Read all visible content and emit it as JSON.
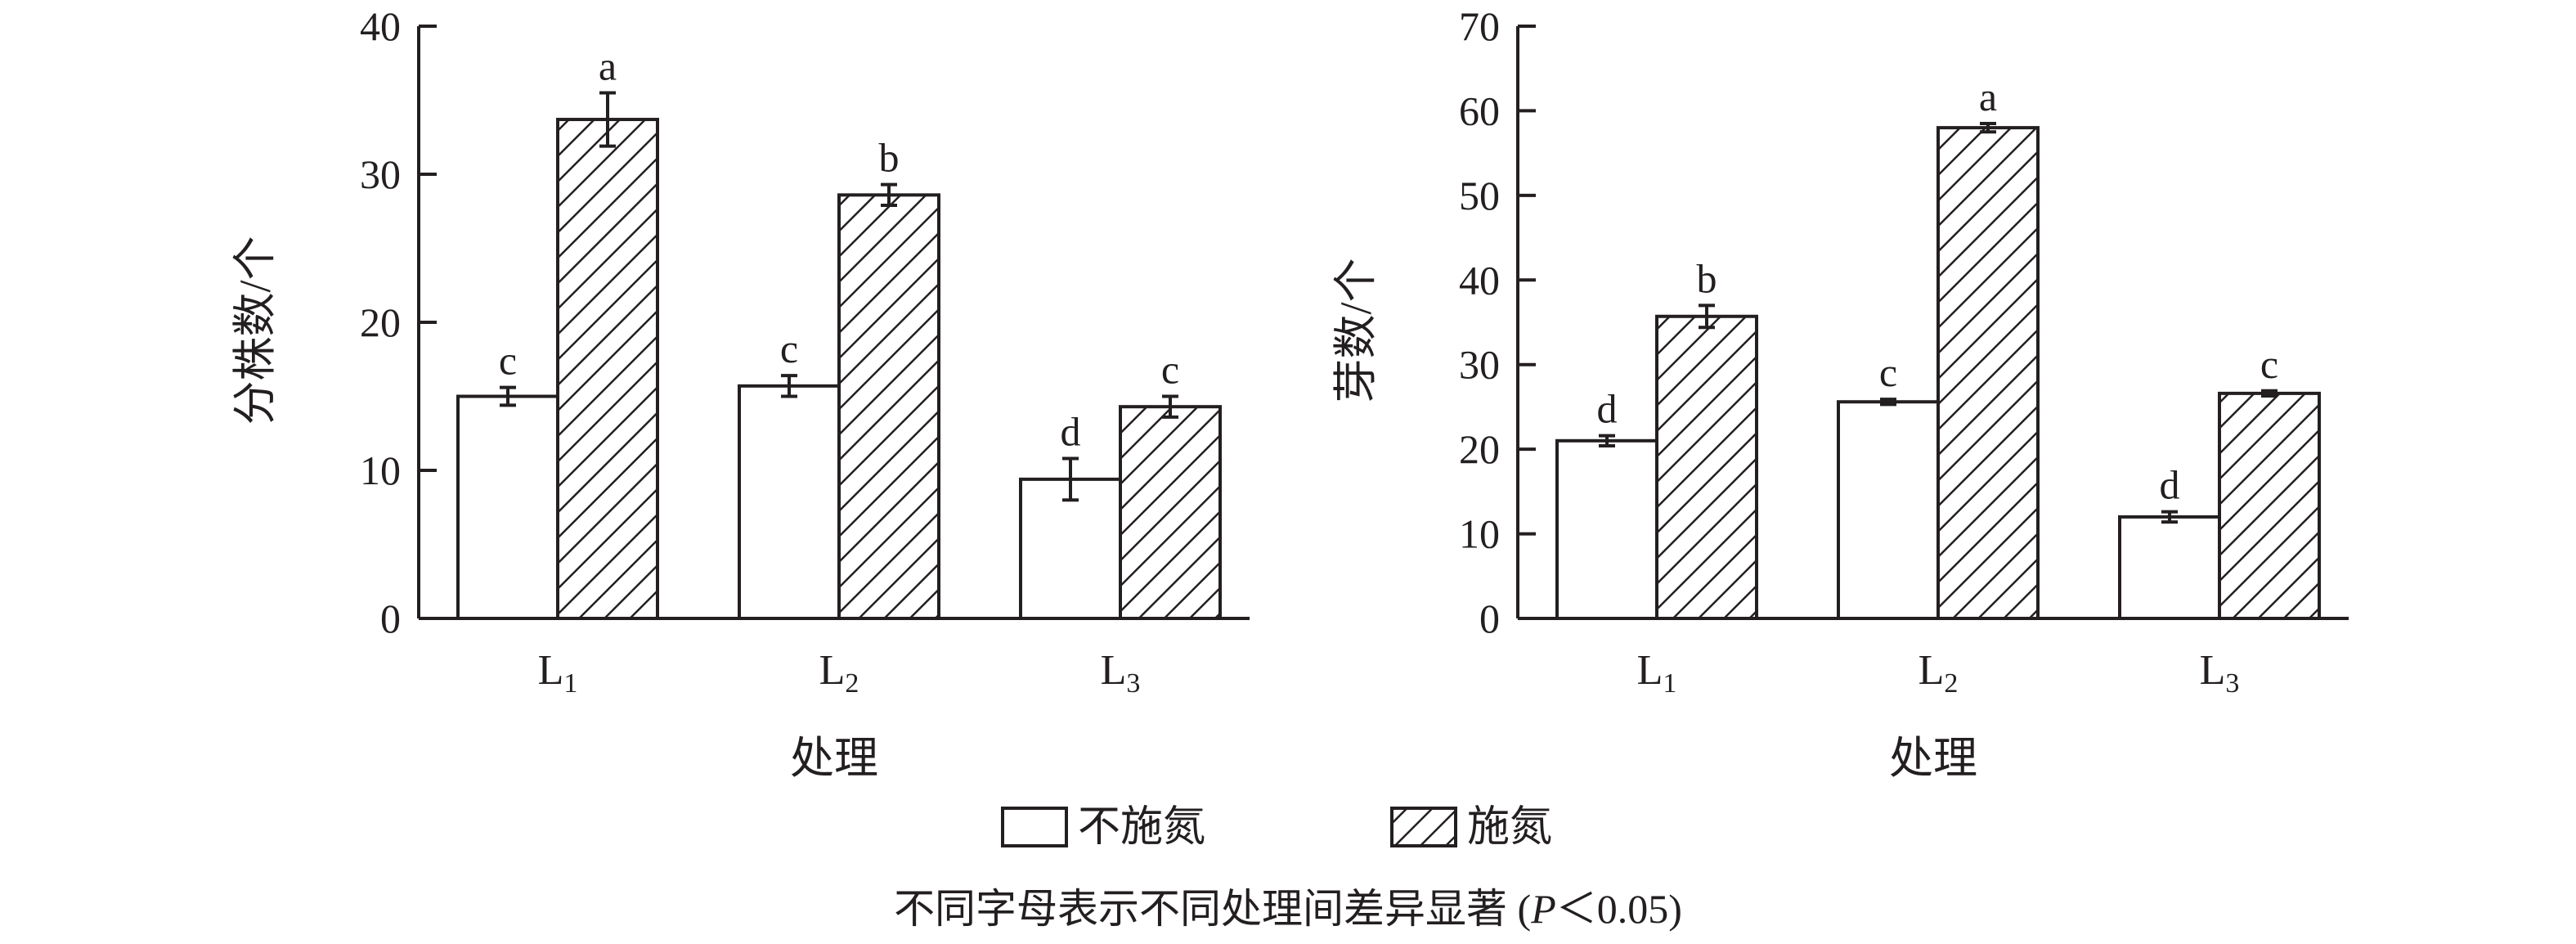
{
  "chart_data": [
    {
      "type": "bar",
      "categories": [
        "L1",
        "L2",
        "L3"
      ],
      "ylabel": "分株数/个",
      "xlabel": "处理",
      "ylim": [
        0,
        40
      ],
      "yticks": [
        0,
        10,
        20,
        30,
        40
      ],
      "series": [
        {
          "name": "不施氮",
          "values": [
            15.0,
            15.7,
            9.4
          ],
          "errors": [
            0.6,
            0.7,
            1.4
          ],
          "letters": [
            "c",
            "c",
            "d"
          ]
        },
        {
          "name": "施氮",
          "values": [
            33.7,
            28.6,
            14.3
          ],
          "errors": [
            1.8,
            0.7,
            0.7
          ],
          "letters": [
            "a",
            "b",
            "c"
          ]
        }
      ]
    },
    {
      "type": "bar",
      "categories": [
        "L1",
        "L2",
        "L3"
      ],
      "ylabel": "芽数/个",
      "xlabel": "处理",
      "ylim": [
        0,
        70
      ],
      "yticks": [
        0,
        10,
        20,
        30,
        40,
        50,
        60,
        70
      ],
      "series": [
        {
          "name": "不施氮",
          "values": [
            21.0,
            25.6,
            12.0
          ],
          "errors": [
            0.6,
            0.3,
            0.6
          ],
          "letters": [
            "d",
            "c",
            "d"
          ]
        },
        {
          "name": "施氮",
          "values": [
            35.7,
            58.0,
            26.6
          ],
          "errors": [
            1.3,
            0.5,
            0.3
          ],
          "letters": [
            "b",
            "a",
            "c"
          ]
        }
      ]
    }
  ],
  "legend": {
    "items": [
      {
        "label": "不施氮",
        "pattern": "none"
      },
      {
        "label": "施氮",
        "pattern": "hatch"
      }
    ]
  },
  "caption_main": "不同字母表示不同处理间差异显著 (",
  "caption_italic": "P",
  "caption_tail": "＜0.05)",
  "colors": {
    "ink": "#231f20",
    "background": "#ffffff"
  }
}
